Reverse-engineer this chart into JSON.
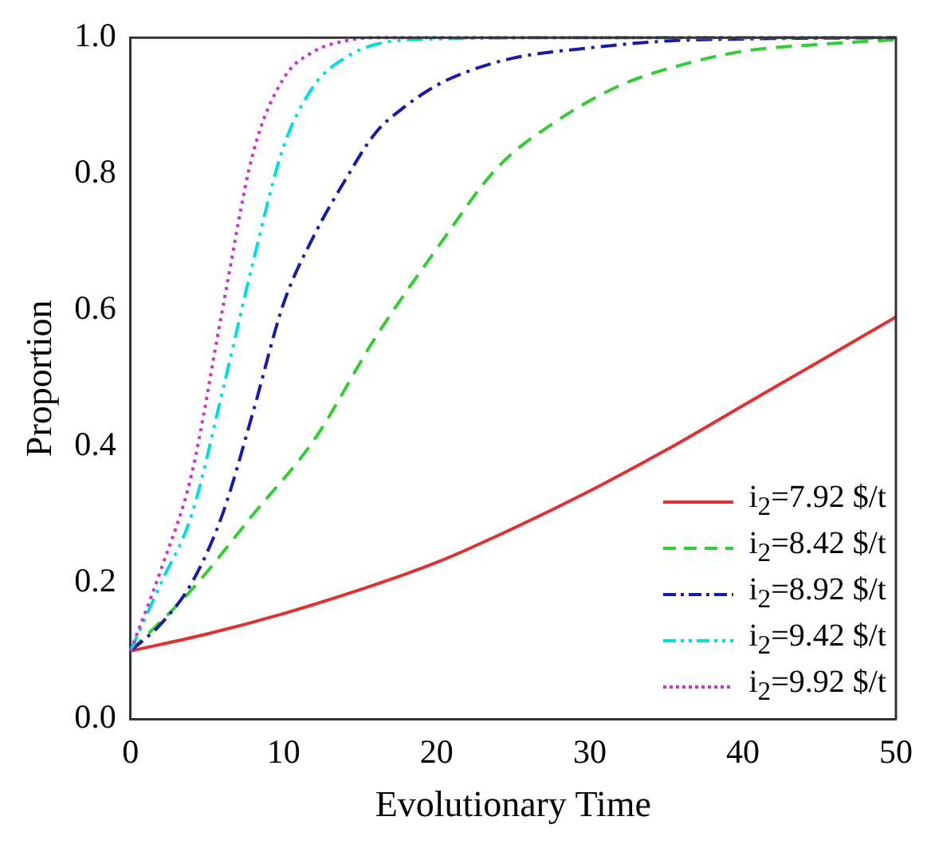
{
  "chart_data": {
    "type": "line",
    "xlabel": "Evolutionary Time",
    "ylabel": "Proportion",
    "xlim": [
      0,
      50
    ],
    "xticks": [
      0,
      10,
      20,
      30,
      40,
      50
    ],
    "ylim": [
      0,
      1
    ],
    "yticks": [
      {
        "value": 0,
        "label": "0.0"
      },
      {
        "value": 0.2,
        "label": "0.2"
      },
      {
        "value": 0.4,
        "label": "0.4"
      },
      {
        "value": 0.6,
        "label": "0.6"
      },
      {
        "value": 0.8,
        "label": "0.8"
      },
      {
        "value": 1,
        "label": "1.0"
      }
    ],
    "grid": false,
    "legend": "bottom right",
    "marker": "none",
    "series": [
      {
        "name": "i$_{2}$=7.92 $/t",
        "color": "#e03030",
        "line_style": "solid",
        "x": [
          0,
          5,
          10,
          15,
          20,
          25,
          30,
          35,
          40,
          45,
          50
        ],
        "values": [
          0.1,
          0.125,
          0.155,
          0.19,
          0.23,
          0.28,
          0.335,
          0.395,
          0.46,
          0.525,
          0.59
        ]
      },
      {
        "name": "i$_{2}$=8.42 $/t",
        "color": "#33cc33",
        "line_style": "dashed",
        "x": [
          0,
          4,
          8,
          12,
          16,
          20,
          24,
          28,
          32,
          36,
          40,
          45,
          50
        ],
        "values": [
          0.1,
          0.19,
          0.3,
          0.41,
          0.56,
          0.69,
          0.81,
          0.88,
          0.93,
          0.96,
          0.98,
          0.99,
          0.997
        ]
      },
      {
        "name": "i$_{2}$=8.92 $/t",
        "color": "#1a1aaa",
        "line_style": "dashdot",
        "x": [
          0,
          2,
          4,
          6,
          8,
          10,
          12,
          14,
          16,
          18,
          20,
          22,
          25,
          30,
          35,
          40,
          50
        ],
        "values": [
          0.1,
          0.14,
          0.2,
          0.3,
          0.45,
          0.61,
          0.71,
          0.79,
          0.86,
          0.9,
          0.93,
          0.95,
          0.97,
          0.985,
          0.995,
          0.998,
          1.0
        ]
      },
      {
        "name": "i$_{2}$=9.42 $/t",
        "color": "#00dddd",
        "line_style": "dashdotdot",
        "x": [
          0,
          2,
          4,
          6,
          8,
          10,
          12,
          14,
          16,
          20,
          30,
          50
        ],
        "values": [
          0.1,
          0.2,
          0.3,
          0.48,
          0.67,
          0.84,
          0.93,
          0.97,
          0.99,
          0.998,
          1.0,
          1.0
        ]
      },
      {
        "name": "i$_{2}$=9.92 $/t",
        "color": "#cc33cc",
        "line_style": "dotted",
        "x": [
          0,
          2,
          4,
          6,
          8,
          10,
          12,
          14,
          16,
          20,
          30,
          50
        ],
        "values": [
          0.1,
          0.22,
          0.36,
          0.6,
          0.83,
          0.94,
          0.98,
          0.995,
          1.0,
          1.0,
          1.0,
          1.0
        ]
      }
    ]
  }
}
